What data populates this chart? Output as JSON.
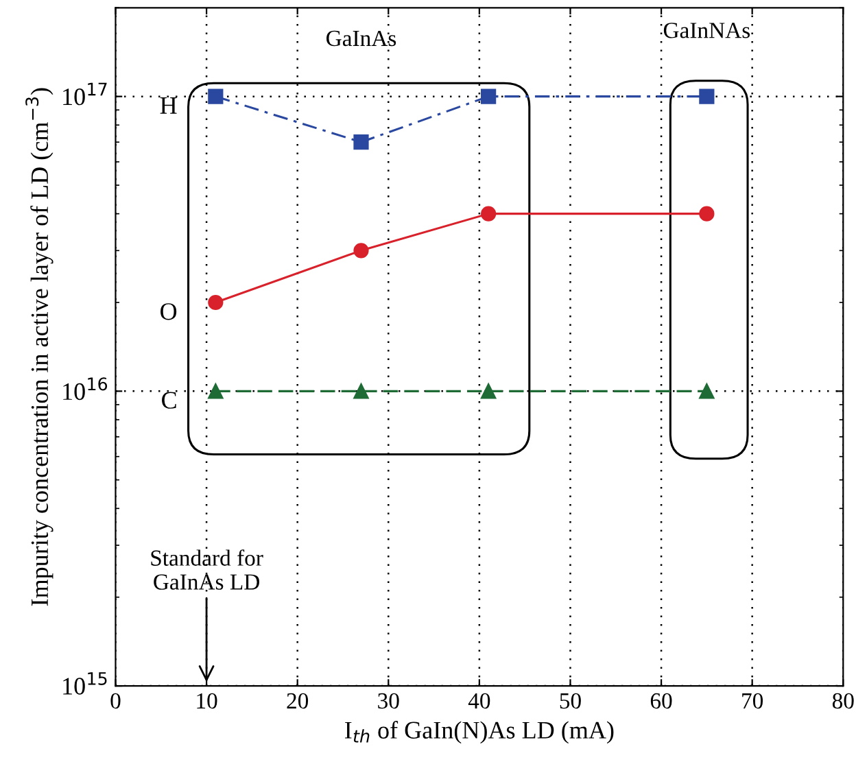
{
  "chart_data": {
    "type": "line",
    "xlabel": "I$_{th}$ of GaIn(N)As LD (mA)",
    "ylabel": "Impurity concentration in active layer of LD (cm$^{−3}$)",
    "x": [
      11,
      27,
      41,
      65
    ],
    "series": [
      {
        "name": "H",
        "color": "#2a48a0",
        "values": [
          1e+17,
          7e+16,
          1e+17,
          1e+17
        ],
        "marker": "square",
        "line_style": "dashdot"
      },
      {
        "name": "O",
        "color": "#d8212a",
        "values": [
          2e+16,
          3e+16,
          4e+16,
          4e+16
        ],
        "marker": "circle",
        "line_style": "solid"
      },
      {
        "name": "C",
        "color": "#1e6b36",
        "values": [
          1e+16,
          1e+16,
          1e+16,
          1e+16
        ],
        "marker": "triangle",
        "line_style": "dashed"
      }
    ],
    "log": "y",
    "xlim": [
      0,
      80
    ],
    "xticks": [
      0,
      10,
      20,
      30,
      40,
      50,
      60,
      70,
      80
    ],
    "ylim": [
      1000000000000000.0,
      2e+17
    ],
    "yticks": [
      {
        "value": 1000000000000000.0,
        "label": "10$^{15}$"
      },
      {
        "value": 1e+16,
        "label": "10$^{16}$"
      },
      {
        "value": 1e+17,
        "label": "10$^{17}$"
      }
    ],
    "grid": true,
    "legend": false,
    "annotations": [
      "GaInAs",
      "GaInNAs",
      "Standard for\nGaInAs LD"
    ]
  }
}
